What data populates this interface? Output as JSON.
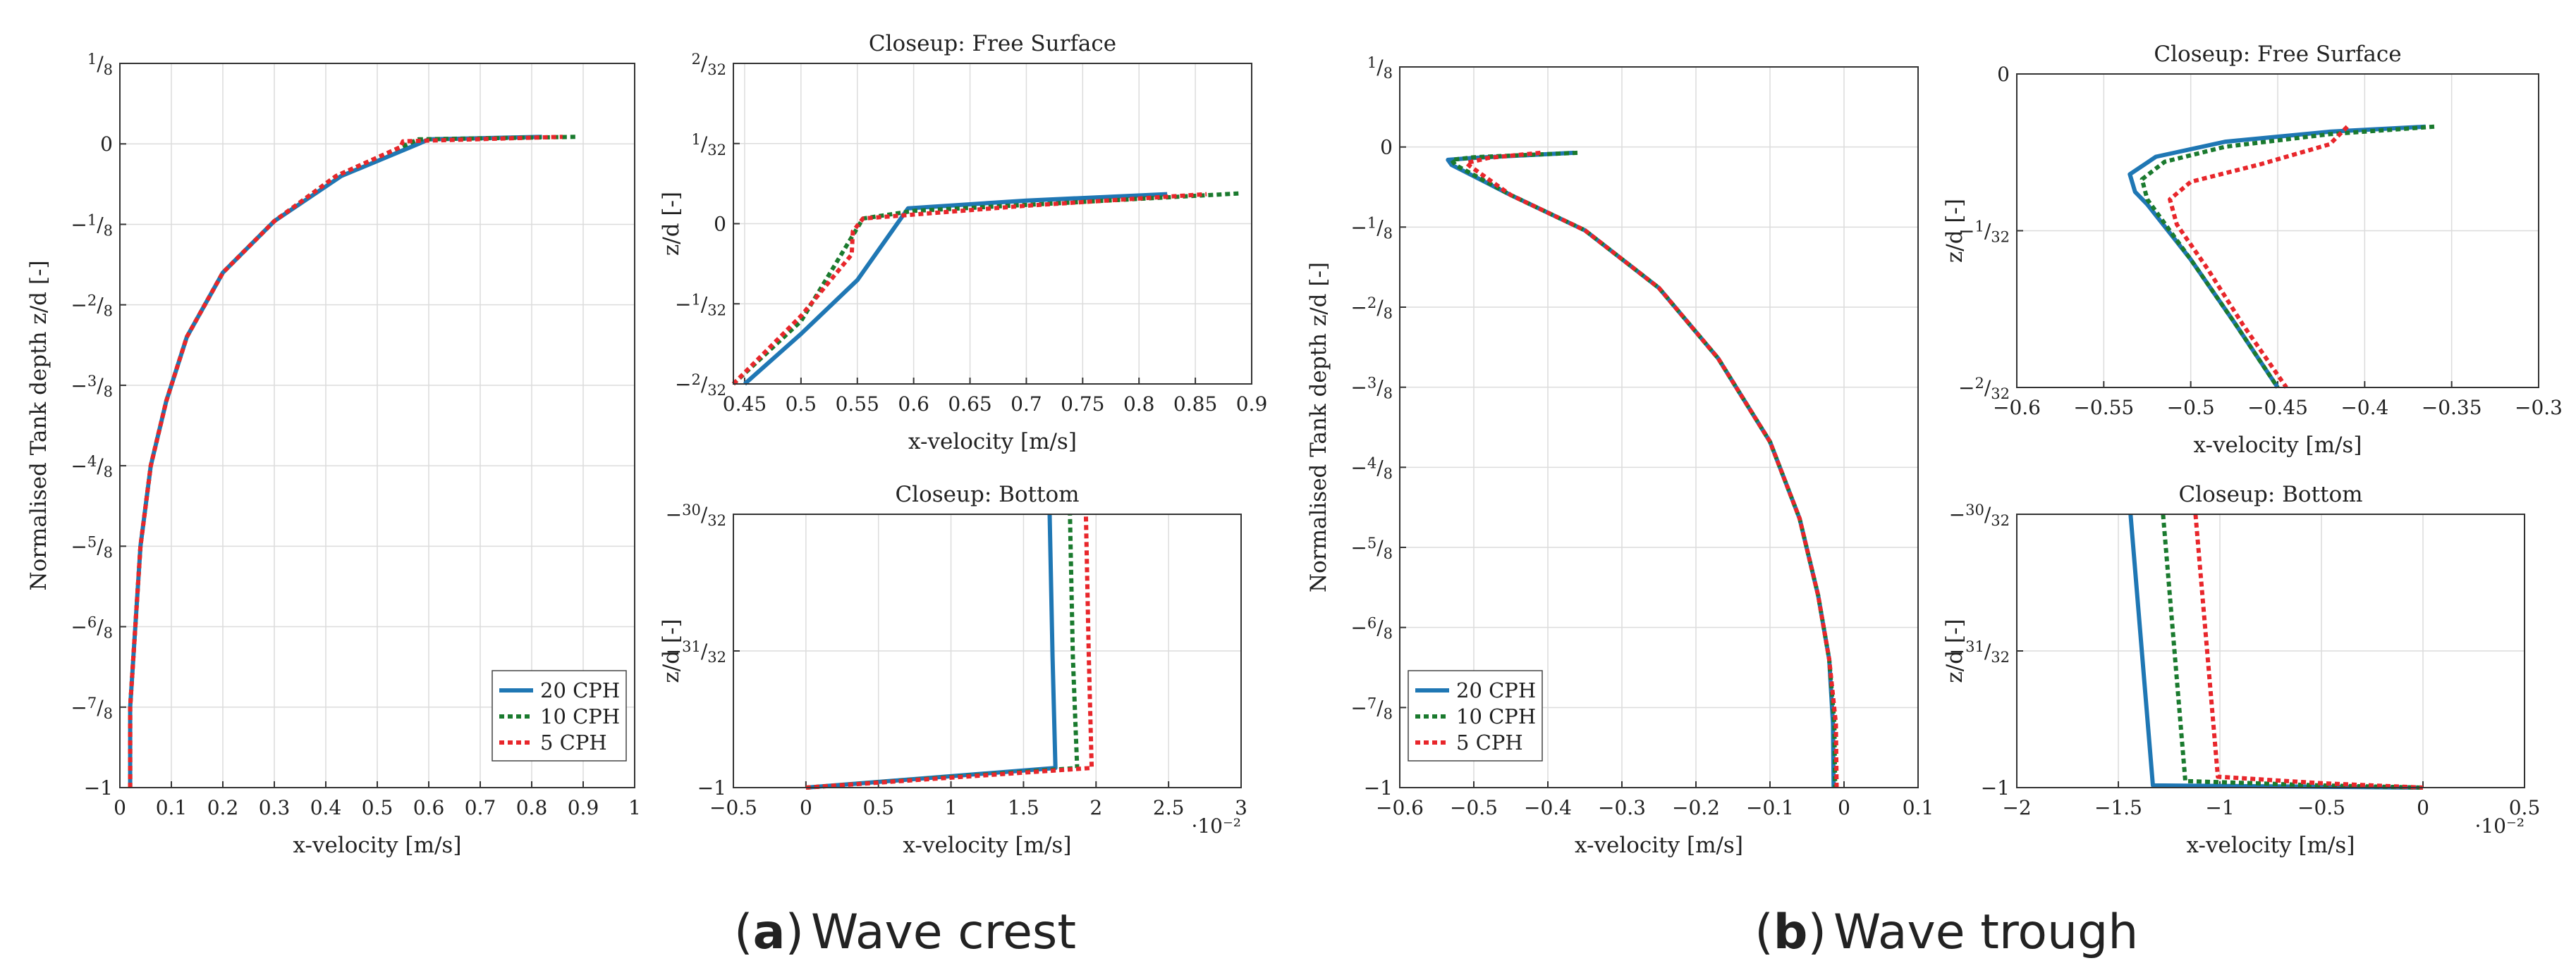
{
  "colors": {
    "blue": "#1f77b4",
    "green": "#1a7a2e",
    "red": "#e8262b"
  },
  "captions": {
    "a_letter": "a",
    "a_text": "Wave crest",
    "b_letter": "b",
    "b_text": "Wave trough"
  },
  "chart_data": [
    {
      "id": "a-main",
      "type": "line",
      "title": "",
      "xlabel": "x-velocity [m/s]",
      "ylabel": "Normalised Tank depth z/d [-]",
      "xlim": [
        0,
        1
      ],
      "ylim": [
        -1,
        0.125
      ],
      "xticks": [
        0,
        0.1,
        0.2,
        0.3,
        0.4,
        0.5,
        0.6,
        0.7,
        0.8,
        0.9,
        1
      ],
      "xtick_labels": [
        "0",
        "0.1",
        "0.2",
        "0.3",
        "0.4",
        "0.5",
        "0.6",
        "0.7",
        "0.8",
        "0.9",
        "1"
      ],
      "yticks": [
        0.125,
        0,
        -0.125,
        -0.25,
        -0.375,
        -0.5,
        -0.625,
        -0.75,
        -0.875,
        -1
      ],
      "ytick_labels": [
        "1/8",
        "0",
        "−1/8",
        "−2/8",
        "−3/8",
        "−4/8",
        "−5/8",
        "−6/8",
        "−7/8",
        "−1"
      ],
      "legend": {
        "position": "bottom-right",
        "entries": [
          "20 CPH",
          "10 CPH",
          "5 CPH"
        ]
      },
      "series": [
        {
          "name": "20 CPH",
          "color": "blue",
          "style": "solid",
          "points": [
            [
              0.02,
              -1
            ],
            [
              0.02,
              -0.95
            ],
            [
              0.02,
              -0.875
            ],
            [
              0.03,
              -0.75
            ],
            [
              0.04,
              -0.625
            ],
            [
              0.06,
              -0.5
            ],
            [
              0.09,
              -0.4
            ],
            [
              0.13,
              -0.3
            ],
            [
              0.2,
              -0.2
            ],
            [
              0.3,
              -0.12
            ],
            [
              0.43,
              -0.05
            ],
            [
              0.58,
              0
            ],
            [
              0.6,
              0.007
            ],
            [
              0.82,
              0.011
            ]
          ]
        },
        {
          "name": "10 CPH",
          "color": "green",
          "style": "dotted",
          "points": [
            [
              0.02,
              -1
            ],
            [
              0.02,
              -0.95
            ],
            [
              0.02,
              -0.875
            ],
            [
              0.03,
              -0.75
            ],
            [
              0.04,
              -0.625
            ],
            [
              0.06,
              -0.5
            ],
            [
              0.09,
              -0.4
            ],
            [
              0.13,
              -0.3
            ],
            [
              0.2,
              -0.2
            ],
            [
              0.3,
              -0.12
            ],
            [
              0.42,
              -0.05
            ],
            [
              0.56,
              0
            ],
            [
              0.58,
              0.007
            ],
            [
              0.89,
              0.011
            ]
          ]
        },
        {
          "name": "5 CPH",
          "color": "red",
          "style": "dotted",
          "points": [
            [
              0.02,
              -1
            ],
            [
              0.02,
              -0.95
            ],
            [
              0.02,
              -0.875
            ],
            [
              0.03,
              -0.75
            ],
            [
              0.04,
              -0.625
            ],
            [
              0.06,
              -0.5
            ],
            [
              0.09,
              -0.4
            ],
            [
              0.13,
              -0.3
            ],
            [
              0.2,
              -0.2
            ],
            [
              0.3,
              -0.12
            ],
            [
              0.42,
              -0.05
            ],
            [
              0.545,
              -0.005
            ],
            [
              0.55,
              0.004
            ],
            [
              0.86,
              0.011
            ]
          ]
        }
      ]
    },
    {
      "id": "a-top",
      "type": "line",
      "title": "Closeup: Free Surface",
      "xlabel": "x-velocity [m/s]",
      "ylabel": "z/d [-]",
      "xlim": [
        0.44,
        0.9
      ],
      "ylim": [
        -0.0625,
        0.0625
      ],
      "xticks": [
        0.45,
        0.5,
        0.55,
        0.6,
        0.65,
        0.7,
        0.75,
        0.8,
        0.85,
        0.9
      ],
      "xtick_labels": [
        "0.45",
        "0.5",
        "0.55",
        "0.6",
        "0.65",
        "0.7",
        "0.75",
        "0.8",
        "0.85",
        "0.9"
      ],
      "yticks": [
        0.0625,
        0.03125,
        0,
        -0.03125,
        -0.0625
      ],
      "ytick_labels": [
        "2/32",
        "1/32",
        "0",
        "−1/32",
        "−2/32"
      ],
      "series": [
        {
          "name": "20 CPH",
          "color": "blue",
          "style": "solid",
          "points": [
            [
              0.45,
              -0.0625
            ],
            [
              0.5,
              -0.043
            ],
            [
              0.55,
              -0.022
            ],
            [
              0.595,
              0.006
            ],
            [
              0.7,
              0.009
            ],
            [
              0.825,
              0.0115
            ]
          ]
        },
        {
          "name": "10 CPH",
          "color": "green",
          "style": "dotted",
          "points": [
            [
              0.44,
              -0.0625
            ],
            [
              0.5,
              -0.038
            ],
            [
              0.555,
              0.002
            ],
            [
              0.6,
              0.005
            ],
            [
              0.75,
              0.0085
            ],
            [
              0.89,
              0.0118
            ]
          ]
        },
        {
          "name": "5 CPH",
          "color": "red",
          "style": "dotted",
          "points": [
            [
              0.44,
              -0.0625
            ],
            [
              0.5,
              -0.036
            ],
            [
              0.545,
              -0.012
            ],
            [
              0.546,
              -0.003
            ],
            [
              0.555,
              0.002
            ],
            [
              0.7,
              0.007
            ],
            [
              0.86,
              0.0115
            ]
          ]
        }
      ]
    },
    {
      "id": "a-bot",
      "type": "line",
      "title": "Closeup: Bottom",
      "xlabel": "x-velocity [m/s]",
      "ylabel": "z/d [-]",
      "xlim": [
        -0.005,
        0.03
      ],
      "ylim": [
        -1,
        -0.9375
      ],
      "xexp": "·10⁻²",
      "xticks": [
        -0.005,
        0,
        0.005,
        0.01,
        0.015,
        0.02,
        0.025,
        0.03
      ],
      "xtick_labels": [
        "−0.5",
        "0",
        "0.5",
        "1",
        "1.5",
        "2",
        "2.5",
        "3"
      ],
      "yticks": [
        -0.9375,
        -0.96875,
        -1
      ],
      "ytick_labels": [
        "−30/32",
        "−31/32",
        "−1"
      ],
      "series": [
        {
          "name": "20 CPH",
          "color": "blue",
          "style": "solid",
          "points": [
            [
              0,
              -1
            ],
            [
              0.0172,
              -0.9955
            ],
            [
              0.017,
              -0.97
            ],
            [
              0.0168,
              -0.9375
            ]
          ]
        },
        {
          "name": "10 CPH",
          "color": "green",
          "style": "dotted",
          "points": [
            [
              0,
              -1
            ],
            [
              0.0187,
              -0.9955
            ],
            [
              0.0184,
              -0.97
            ],
            [
              0.0182,
              -0.9375
            ]
          ]
        },
        {
          "name": "5 CPH",
          "color": "red",
          "style": "dotted",
          "points": [
            [
              0,
              -1
            ],
            [
              0.0197,
              -0.9955
            ],
            [
              0.0195,
              -0.97
            ],
            [
              0.0193,
              -0.9375
            ]
          ]
        }
      ]
    },
    {
      "id": "b-main",
      "type": "line",
      "title": "",
      "xlabel": "x-velocity [m/s]",
      "ylabel": "Normalised Tank depth z/d [-]",
      "xlim": [
        -0.6,
        0.1
      ],
      "ylim": [
        -1,
        0.125
      ],
      "xticks": [
        -0.6,
        -0.5,
        -0.4,
        -0.3,
        -0.2,
        -0.1,
        0,
        0.1
      ],
      "xtick_labels": [
        "−0.6",
        "−0.5",
        "−0.4",
        "−0.3",
        "−0.2",
        "−0.1",
        "0",
        "0.1"
      ],
      "yticks": [
        0.125,
        0,
        -0.125,
        -0.25,
        -0.375,
        -0.5,
        -0.625,
        -0.75,
        -0.875,
        -1
      ],
      "ytick_labels": [
        "1/8",
        "0",
        "−1/8",
        "−2/8",
        "−3/8",
        "−4/8",
        "−5/8",
        "−6/8",
        "−7/8",
        "−1"
      ],
      "legend": {
        "position": "bottom-left",
        "entries": [
          "20 CPH",
          "10 CPH",
          "5 CPH"
        ]
      },
      "series": [
        {
          "name": "20 CPH",
          "color": "blue",
          "style": "solid",
          "points": [
            [
              -0.365,
              -0.009
            ],
            [
              -0.5,
              -0.017
            ],
            [
              -0.535,
              -0.02
            ],
            [
              -0.53,
              -0.028
            ],
            [
              -0.45,
              -0.075
            ],
            [
              -0.35,
              -0.13
            ],
            [
              -0.25,
              -0.22
            ],
            [
              -0.17,
              -0.33
            ],
            [
              -0.1,
              -0.46
            ],
            [
              -0.06,
              -0.58
            ],
            [
              -0.035,
              -0.7
            ],
            [
              -0.02,
              -0.8
            ],
            [
              -0.015,
              -0.9
            ],
            [
              -0.014,
              -1
            ]
          ]
        },
        {
          "name": "10 CPH",
          "color": "green",
          "style": "dotted",
          "points": [
            [
              -0.36,
              -0.009
            ],
            [
              -0.5,
              -0.016
            ],
            [
              -0.53,
              -0.02
            ],
            [
              -0.525,
              -0.028
            ],
            [
              -0.45,
              -0.075
            ],
            [
              -0.35,
              -0.13
            ],
            [
              -0.25,
              -0.22
            ],
            [
              -0.17,
              -0.33
            ],
            [
              -0.1,
              -0.46
            ],
            [
              -0.06,
              -0.58
            ],
            [
              -0.035,
              -0.7
            ],
            [
              -0.02,
              -0.8
            ],
            [
              -0.013,
              -0.9
            ],
            [
              -0.012,
              -1
            ]
          ]
        },
        {
          "name": "5 CPH",
          "color": "red",
          "style": "dotted",
          "points": [
            [
              -0.41,
              -0.009
            ],
            [
              -0.48,
              -0.017
            ],
            [
              -0.51,
              -0.025
            ],
            [
              -0.505,
              -0.03
            ],
            [
              -0.45,
              -0.075
            ],
            [
              -0.35,
              -0.13
            ],
            [
              -0.25,
              -0.22
            ],
            [
              -0.17,
              -0.33
            ],
            [
              -0.1,
              -0.46
            ],
            [
              -0.06,
              -0.58
            ],
            [
              -0.035,
              -0.7
            ],
            [
              -0.02,
              -0.8
            ],
            [
              -0.011,
              -0.9
            ],
            [
              -0.01,
              -1
            ]
          ]
        }
      ]
    },
    {
      "id": "b-top",
      "type": "line",
      "title": "Closeup: Free Surface",
      "xlabel": "x-velocity [m/s]",
      "ylabel": "z/d [-]",
      "xlim": [
        -0.6,
        -0.3
      ],
      "ylim": [
        -0.0625,
        0
      ],
      "xticks": [
        -0.6,
        -0.55,
        -0.5,
        -0.45,
        -0.4,
        -0.35,
        -0.3
      ],
      "xtick_labels": [
        "−0.6",
        "−0.55",
        "−0.5",
        "−0.45",
        "−0.4",
        "−0.35",
        "−0.3"
      ],
      "yticks": [
        0,
        -0.03125,
        -0.0625
      ],
      "ytick_labels": [
        "0",
        "−1/32",
        "−2/32"
      ],
      "series": [
        {
          "name": "20 CPH",
          "color": "blue",
          "style": "solid",
          "points": [
            [
              -0.365,
              -0.0105
            ],
            [
              -0.42,
              -0.0115
            ],
            [
              -0.48,
              -0.0135
            ],
            [
              -0.52,
              -0.0165
            ],
            [
              -0.535,
              -0.02
            ],
            [
              -0.532,
              -0.0235
            ],
            [
              -0.525,
              -0.026
            ],
            [
              -0.5,
              -0.037
            ],
            [
              -0.475,
              -0.0495
            ],
            [
              -0.45,
              -0.0625
            ]
          ]
        },
        {
          "name": "10 CPH",
          "color": "green",
          "style": "dotted",
          "points": [
            [
              -0.36,
              -0.0105
            ],
            [
              -0.42,
              -0.012
            ],
            [
              -0.48,
              -0.0145
            ],
            [
              -0.515,
              -0.0175
            ],
            [
              -0.528,
              -0.021
            ],
            [
              -0.525,
              -0.025
            ],
            [
              -0.5,
              -0.037
            ],
            [
              -0.475,
              -0.0495
            ],
            [
              -0.45,
              -0.0625
            ]
          ]
        },
        {
          "name": "5 CPH",
          "color": "red",
          "style": "dotted",
          "points": [
            [
              -0.41,
              -0.0105
            ],
            [
              -0.42,
              -0.014
            ],
            [
              -0.46,
              -0.018
            ],
            [
              -0.5,
              -0.0215
            ],
            [
              -0.512,
              -0.025
            ],
            [
              -0.508,
              -0.03
            ],
            [
              -0.49,
              -0.039
            ],
            [
              -0.47,
              -0.05
            ],
            [
              -0.445,
              -0.0625
            ]
          ]
        }
      ]
    },
    {
      "id": "b-bot",
      "type": "line",
      "title": "Closeup: Bottom",
      "xlabel": "x-velocity [m/s]",
      "ylabel": "z/d [-]",
      "xlim": [
        -0.02,
        0.005
      ],
      "ylim": [
        -1,
        -0.9375
      ],
      "xexp": "·10⁻²",
      "xticks": [
        -0.02,
        -0.015,
        -0.01,
        -0.005,
        0,
        0.005
      ],
      "xtick_labels": [
        "−2",
        "−1.5",
        "−1",
        "−0.5",
        "0",
        "0.5"
      ],
      "yticks": [
        -0.9375,
        -0.96875,
        -1
      ],
      "ytick_labels": [
        "−30/32",
        "−31/32",
        "−1"
      ],
      "series": [
        {
          "name": "20 CPH",
          "color": "blue",
          "style": "solid",
          "points": [
            [
              -0.0144,
              -0.9375
            ],
            [
              -0.0133,
              -0.9995
            ],
            [
              -0.005,
              -0.9998
            ],
            [
              0,
              -1
            ]
          ]
        },
        {
          "name": "10 CPH",
          "color": "green",
          "style": "dotted",
          "points": [
            [
              -0.0128,
              -0.9375
            ],
            [
              -0.0117,
              -0.9985
            ],
            [
              -0.005,
              -0.9995
            ],
            [
              0,
              -1
            ]
          ]
        },
        {
          "name": "5 CPH",
          "color": "red",
          "style": "dotted",
          "points": [
            [
              -0.0112,
              -0.9375
            ],
            [
              -0.0101,
              -0.9975
            ],
            [
              -0.005,
              -0.999
            ],
            [
              0,
              -1
            ]
          ]
        }
      ]
    }
  ]
}
